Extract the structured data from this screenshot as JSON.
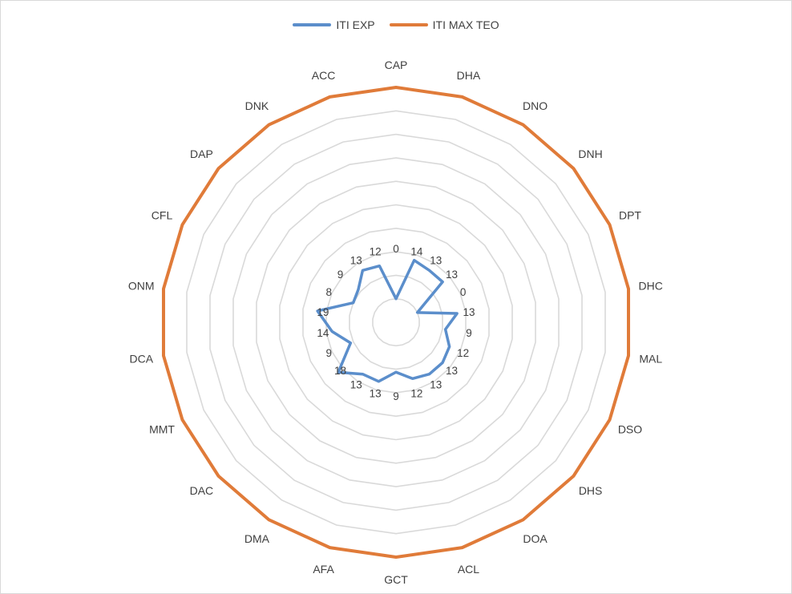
{
  "chart_data": {
    "type": "radar",
    "categories": [
      "CAP",
      "DHA",
      "DNO",
      "DNH",
      "DPT",
      "DHC",
      "MAL",
      "DSO",
      "DHS",
      "DOA",
      "ACL",
      "GCT",
      "AFA",
      "DMA",
      "DAC",
      "MMT",
      "DCA",
      "ONM",
      "CFL",
      "DAP",
      "DNK",
      "ACC"
    ],
    "series": [
      {
        "name": "ITI EXP",
        "color": "#5b8ecb",
        "values": [
          0,
          14,
          13,
          13,
          0,
          13,
          9,
          12,
          13,
          13,
          12,
          9,
          13,
          13,
          18,
          9,
          14,
          19,
          8,
          9,
          13,
          12
        ]
      },
      {
        "name": "ITI MAX TEO",
        "color": "#e07b39",
        "values": [
          72,
          72,
          72,
          72,
          72,
          72,
          72,
          72,
          72,
          72,
          72,
          72,
          72,
          72,
          72,
          72,
          72,
          72,
          72,
          72,
          72,
          72
        ]
      }
    ],
    "data_labels": [
      "0",
      "14",
      "13",
      "13",
      "0",
      "13",
      "9",
      "12",
      "13",
      "13",
      "12",
      "9",
      "13",
      "13",
      "18",
      "9",
      "14",
      "19",
      "8",
      "9",
      "13",
      "12"
    ],
    "rlim": [
      -8,
      72
    ],
    "grid": true,
    "legend_position": "top"
  }
}
